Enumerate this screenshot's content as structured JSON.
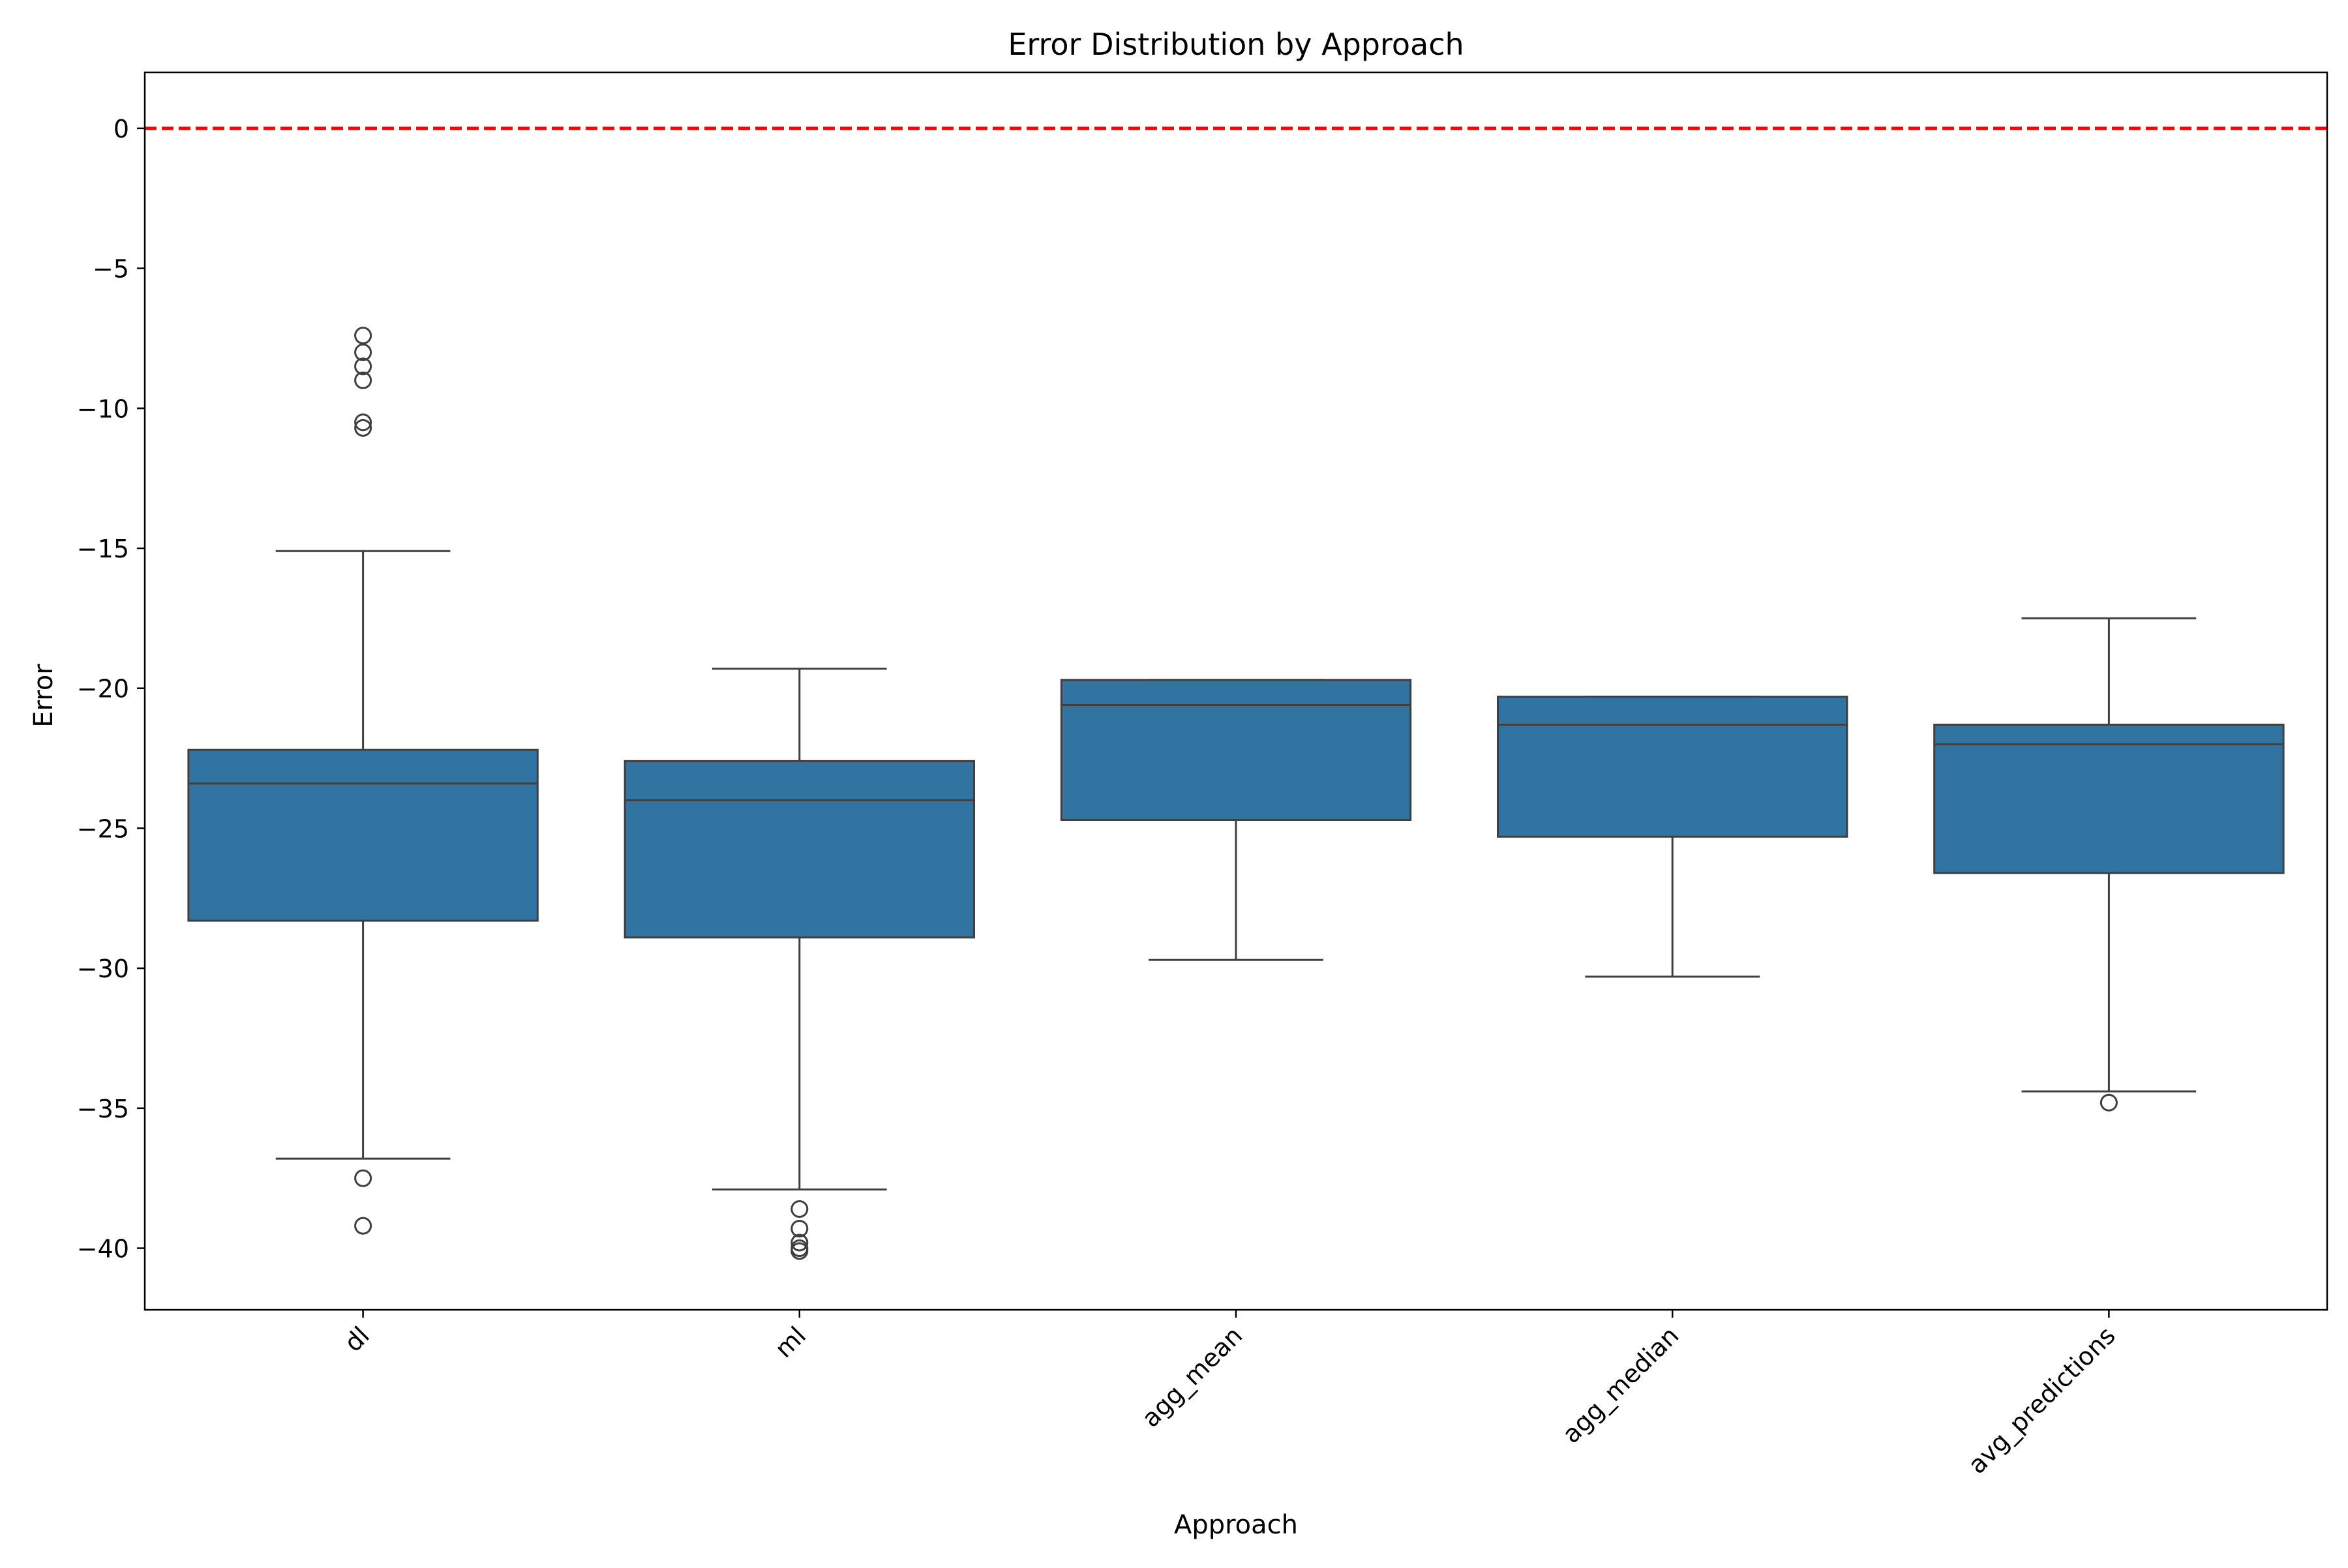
{
  "chart_data": {
    "type": "box",
    "title": "Error Distribution by Approach",
    "xlabel": "Approach",
    "ylabel": "Error",
    "ylim": [
      -42.2,
      2.0
    ],
    "yticks": [
      0,
      -5,
      -10,
      -15,
      -20,
      -25,
      -30,
      -35,
      -40
    ],
    "ytick_labels": [
      "0",
      "−5",
      "−10",
      "−15",
      "−20",
      "−25",
      "−30",
      "−35",
      "−40"
    ],
    "categories": [
      "dl",
      "ml",
      "agg_mean",
      "agg_median",
      "avg_predictions"
    ],
    "boxes": [
      {
        "category": "dl",
        "whisker_low": -36.8,
        "q1": -28.3,
        "median": -23.4,
        "q3": -22.2,
        "whisker_high": -15.1,
        "outliers": [
          -7.4,
          -8.0,
          -8.5,
          -9.0,
          -10.5,
          -10.7,
          -37.5,
          -39.2
        ]
      },
      {
        "category": "ml",
        "whisker_low": -37.9,
        "q1": -28.9,
        "median": -24.0,
        "q3": -22.6,
        "whisker_high": -19.3,
        "outliers": [
          -38.6,
          -39.3,
          -39.8,
          -40.0,
          -40.1
        ]
      },
      {
        "category": "agg_mean",
        "whisker_low": -29.7,
        "q1": -24.7,
        "median": -20.6,
        "q3": -19.7,
        "whisker_high": -19.7,
        "outliers": []
      },
      {
        "category": "agg_median",
        "whisker_low": -30.3,
        "q1": -25.3,
        "median": -21.3,
        "q3": -20.3,
        "whisker_high": -20.3,
        "outliers": []
      },
      {
        "category": "avg_predictions",
        "whisker_low": -34.4,
        "q1": -26.6,
        "median": -22.0,
        "q3": -21.3,
        "whisker_high": -17.5,
        "outliers": [
          -34.8
        ]
      }
    ],
    "reference_line": {
      "y": 0,
      "color": "#ff0000",
      "style": "dashed"
    },
    "box_color": "#3274a1",
    "line_color": "#3f3f3f",
    "grid": false,
    "legend": "none"
  }
}
